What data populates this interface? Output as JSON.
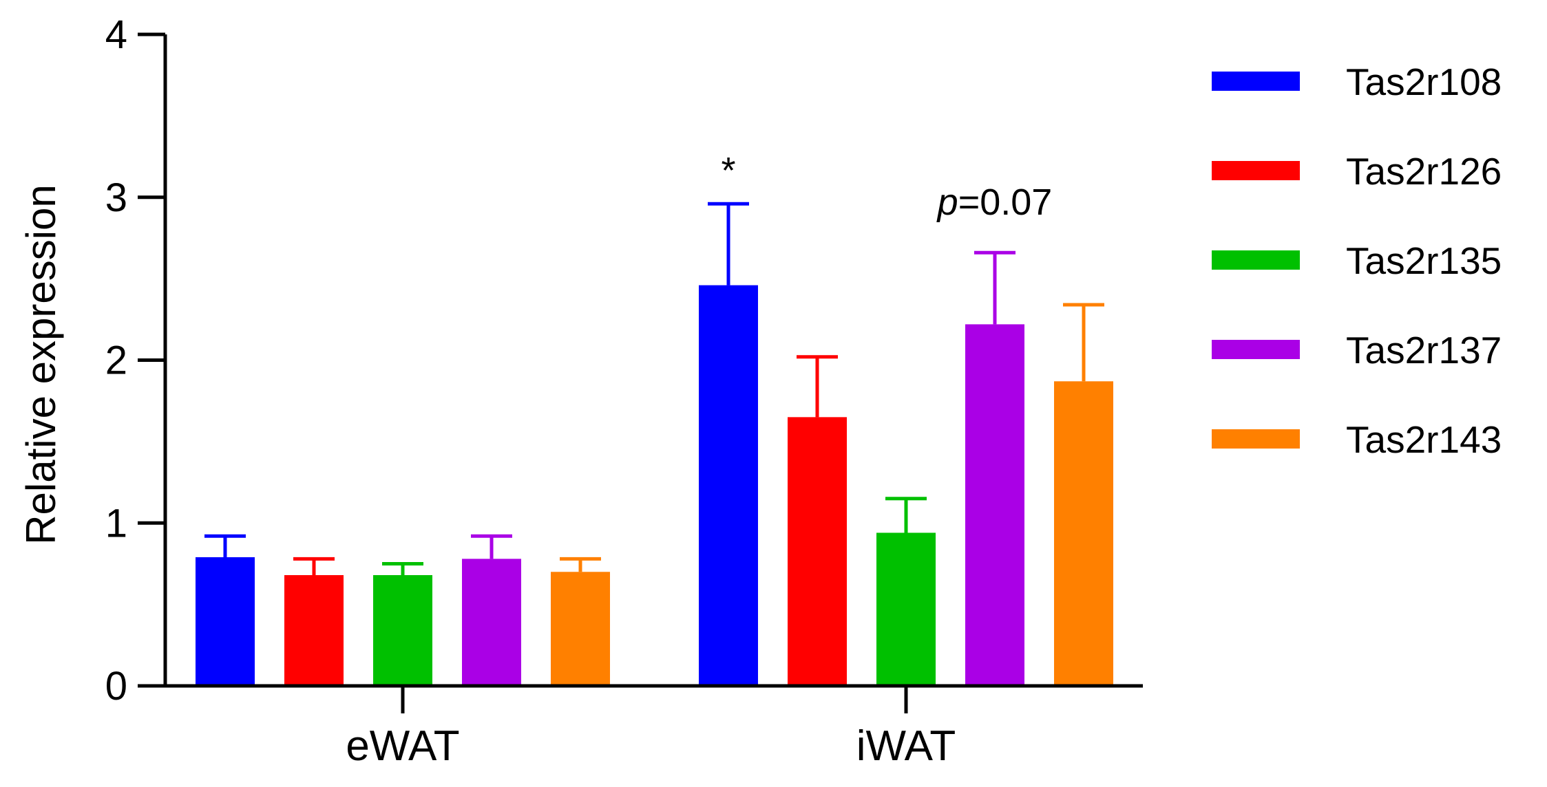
{
  "chart_data": {
    "type": "bar",
    "title": "",
    "xlabel": "",
    "ylabel": "Relative expression",
    "ylim": [
      0,
      4
    ],
    "yticks": [
      0,
      1,
      2,
      3,
      4
    ],
    "grid": false,
    "legend_position": "right",
    "categories": [
      "eWAT",
      "iWAT"
    ],
    "series": [
      {
        "name": "Tas2r108",
        "color": "#0000ff",
        "values": [
          0.79,
          2.46
        ],
        "errors": [
          0.13,
          0.5
        ]
      },
      {
        "name": "Tas2r126",
        "color": "#ff0000",
        "values": [
          0.68,
          1.65
        ],
        "errors": [
          0.1,
          0.37
        ]
      },
      {
        "name": "Tas2r135",
        "color": "#00c000",
        "values": [
          0.68,
          0.94
        ],
        "errors": [
          0.07,
          0.21
        ]
      },
      {
        "name": "Tas2r137",
        "color": "#aa00e6",
        "values": [
          0.78,
          2.22
        ],
        "errors": [
          0.14,
          0.44
        ]
      },
      {
        "name": "Tas2r143",
        "color": "#ff8000",
        "values": [
          0.7,
          1.87
        ],
        "errors": [
          0.08,
          0.47
        ]
      }
    ],
    "annotations": [
      {
        "text": "*",
        "category": "iWAT",
        "series": "Tas2r108"
      },
      {
        "text_italic": "p",
        "text": "=0.07",
        "category": "iWAT",
        "series": "Tas2r137"
      }
    ]
  }
}
